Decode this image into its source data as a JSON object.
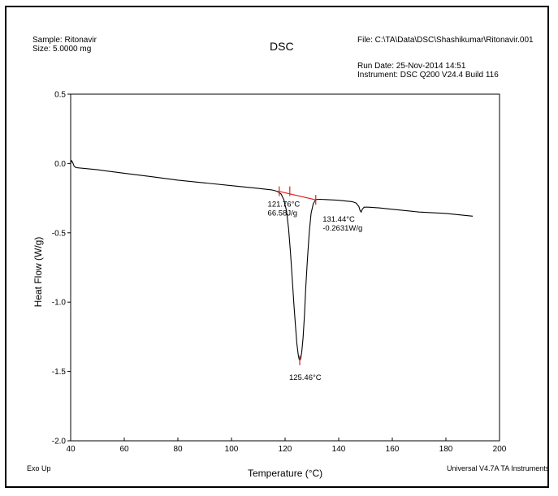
{
  "header": {
    "sample": "Sample: Ritonavir",
    "size": "Size:  5.0000 mg",
    "title": "DSC",
    "file": "File: C:\\TA\\Data\\DSC\\Shashikumar\\Ritonavir.001",
    "run_date": "Run Date: 25-Nov-2014 14:51",
    "instrument": "Instrument: DSC Q200 V24.4 Build 116"
  },
  "footer": {
    "exo": "Exo Up",
    "software": "Universal V4.7A TA Instruments"
  },
  "colors": {
    "curve": "#000000",
    "baseline": "#e02020",
    "axes": "#000000"
  },
  "chart_data": {
    "type": "line",
    "title": "DSC",
    "xlabel": "Temperature (°C)",
    "ylabel": "Heat Flow (W/g)",
    "xlim": [
      40,
      200
    ],
    "ylim": [
      -2.0,
      0.5
    ],
    "xticks": [
      40,
      60,
      80,
      100,
      120,
      140,
      160,
      180,
      200
    ],
    "yticks": [
      0.5,
      0.0,
      -0.5,
      -1.0,
      -1.5,
      -2.0
    ],
    "ytick_labels": [
      "0.5",
      "0.0",
      "-0.5",
      "-1.0",
      "-1.5",
      "-2.0"
    ],
    "grid": false,
    "series": [
      {
        "x": [
          40,
          40.3,
          40.7,
          41.3,
          42,
          45,
          50,
          60,
          70,
          80,
          90,
          100,
          110,
          115,
          117,
          118.5,
          119.5,
          120.5,
          121.3,
          122,
          122.7,
          123.3,
          123.9,
          124.4,
          124.9,
          125.2,
          125.46,
          125.8,
          126.2,
          126.7,
          127.2,
          127.7,
          128.3,
          129,
          129.7,
          130.5,
          131.44,
          133,
          135,
          140,
          145,
          146.5,
          147.5,
          148,
          148.4,
          148.8,
          149.5,
          151,
          155,
          160,
          170,
          180,
          190
        ],
        "y": [
          0.0,
          0.02,
          0.01,
          -0.02,
          -0.03,
          -0.035,
          -0.045,
          -0.07,
          -0.095,
          -0.12,
          -0.14,
          -0.16,
          -0.18,
          -0.19,
          -0.2,
          -0.22,
          -0.26,
          -0.34,
          -0.47,
          -0.64,
          -0.84,
          -1.02,
          -1.18,
          -1.3,
          -1.38,
          -1.41,
          -1.42,
          -1.41,
          -1.36,
          -1.26,
          -1.1,
          -0.9,
          -0.7,
          -0.5,
          -0.36,
          -0.29,
          -0.26,
          -0.258,
          -0.26,
          -0.265,
          -0.275,
          -0.285,
          -0.31,
          -0.34,
          -0.35,
          -0.33,
          -0.315,
          -0.315,
          -0.32,
          -0.33,
          -0.35,
          -0.36,
          -0.38
        ]
      }
    ],
    "baseline": {
      "x": [
        117.5,
        131.44
      ],
      "y": [
        -0.2,
        -0.262
      ]
    },
    "markers": [
      {
        "x": 117.8,
        "y": -0.2
      },
      {
        "x": 121.76,
        "y": -0.2
      },
      {
        "x": 131.44,
        "y": -0.262
      },
      {
        "x": 125.46,
        "y": -1.42
      }
    ],
    "annotations": [
      {
        "lines": [
          "121.76°C",
          "66.58J/g"
        ],
        "x": 113.5,
        "y": -0.31
      },
      {
        "lines": [
          "131.44°C",
          "-0.2631W/g"
        ],
        "x": 134,
        "y": -0.42
      },
      {
        "lines": [
          "125.46°C"
        ],
        "x": 121.5,
        "y": -1.56
      }
    ]
  }
}
